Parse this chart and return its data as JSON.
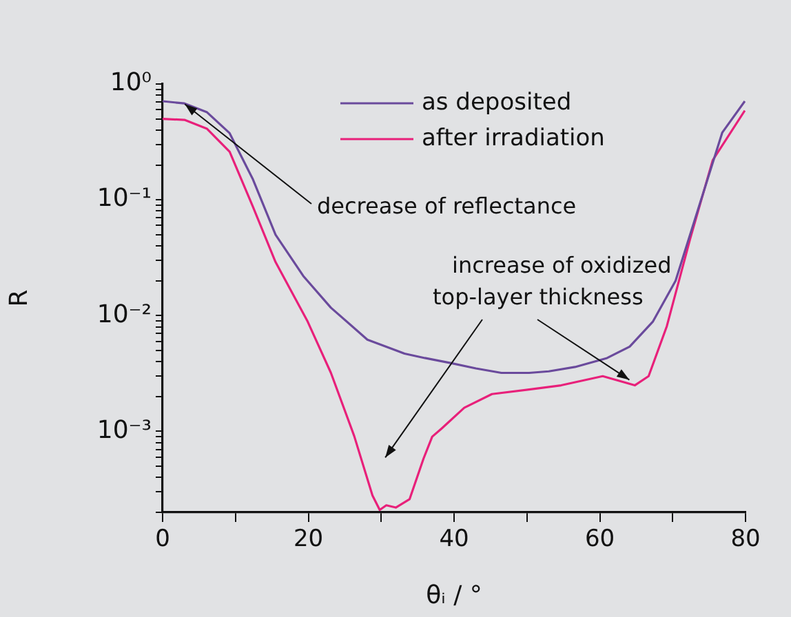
{
  "chart_data": {
    "type": "line",
    "xlabel": "θᵢ / °",
    "ylabel": "R",
    "log": "y",
    "grid": false,
    "legend": "top right",
    "marker": "none",
    "line_style": "solid",
    "xlim": [
      0,
      80
    ],
    "xticks": [
      0,
      {
        "value": 10,
        "label": null
      },
      20,
      {
        "value": 30,
        "label": null
      },
      40,
      {
        "value": 50,
        "label": null
      },
      60,
      {
        "value": 70,
        "label": null
      },
      80
    ],
    "ylim": [
      0.0002,
      1
    ],
    "yticks": [
      {
        "value": 0.0002,
        "label": null
      },
      {
        "value": 0.0003,
        "label": null
      },
      {
        "value": 0.0004,
        "label": null
      },
      {
        "value": 0.0005,
        "label": null
      },
      {
        "value": 0.0006,
        "label": null
      },
      {
        "value": 0.0007,
        "label": null
      },
      {
        "value": 0.0008,
        "label": null
      },
      {
        "value": 0.0009,
        "label": null
      },
      {
        "value": 0.001,
        "label": "10⁻³"
      },
      {
        "value": 0.002,
        "label": null
      },
      {
        "value": 0.003,
        "label": null
      },
      {
        "value": 0.004,
        "label": null
      },
      {
        "value": 0.005,
        "label": null
      },
      {
        "value": 0.006,
        "label": null
      },
      {
        "value": 0.007,
        "label": null
      },
      {
        "value": 0.008,
        "label": null
      },
      {
        "value": 0.009,
        "label": null
      },
      {
        "value": 0.01,
        "label": "10⁻²"
      },
      {
        "value": 0.02,
        "label": null
      },
      {
        "value": 0.03,
        "label": null
      },
      {
        "value": 0.04,
        "label": null
      },
      {
        "value": 0.05,
        "label": null
      },
      {
        "value": 0.06,
        "label": null
      },
      {
        "value": 0.07,
        "label": null
      },
      {
        "value": 0.08,
        "label": null
      },
      {
        "value": 0.09,
        "label": null
      },
      {
        "value": 0.1,
        "label": "10⁻¹"
      },
      {
        "value": 0.2,
        "label": null
      },
      {
        "value": 0.3,
        "label": null
      },
      {
        "value": 0.4,
        "label": null
      },
      {
        "value": 0.5,
        "label": null
      },
      {
        "value": 0.6,
        "label": null
      },
      {
        "value": 0.7,
        "label": null
      },
      {
        "value": 0.8,
        "label": null
      },
      {
        "value": 0.9,
        "label": null
      },
      {
        "value": 1,
        "label": "10⁰"
      }
    ],
    "series": [
      {
        "name": "as deposited",
        "color": "#6a4a9c",
        "x": [
          0,
          3,
          6.1,
          9.2,
          12.4,
          15.5,
          19.3,
          23.1,
          28.1,
          33.2,
          36,
          39.5,
          43,
          46.5,
          50.3,
          53,
          56.6,
          61,
          64.1,
          67.3,
          70.4,
          73.6,
          76.8,
          79.9
        ],
        "values": [
          0.71,
          0.68,
          0.57,
          0.376,
          0.15,
          0.05,
          0.022,
          0.0117,
          0.0062,
          0.0047,
          0.0043,
          0.0039,
          0.0035,
          0.0032,
          0.0032,
          0.0033,
          0.0036,
          0.0043,
          0.0054,
          0.0089,
          0.02,
          0.087,
          0.38,
          0.71
        ]
      },
      {
        "name": "after irradiation",
        "color": "#e8207a",
        "x": [
          0,
          3,
          6.1,
          9.2,
          12.4,
          15.5,
          19.9,
          23.1,
          26.3,
          28.8,
          29.8,
          30.7,
          32,
          33.9,
          35.8,
          37,
          38.3,
          41.4,
          45.2,
          50.3,
          54.7,
          60.4,
          64.8,
          66.7,
          69.2,
          72.4,
          75.5,
          79.9
        ],
        "values": [
          0.5,
          0.49,
          0.41,
          0.26,
          0.087,
          0.029,
          0.0089,
          0.0032,
          0.00091,
          0.00028,
          0.00021,
          0.00023,
          0.00022,
          0.00026,
          0.00058,
          0.0009,
          0.00106,
          0.0016,
          0.0021,
          0.0023,
          0.0025,
          0.003,
          0.0025,
          0.003,
          0.0081,
          0.046,
          0.22,
          0.59
        ]
      }
    ],
    "annotations": [
      {
        "text": "decrease of reflectance",
        "x": 4,
        "y": 0.6
      },
      {
        "text": "increase of oxidized top-layer thickness",
        "x": 65,
        "y": 0.0025
      }
    ]
  }
}
